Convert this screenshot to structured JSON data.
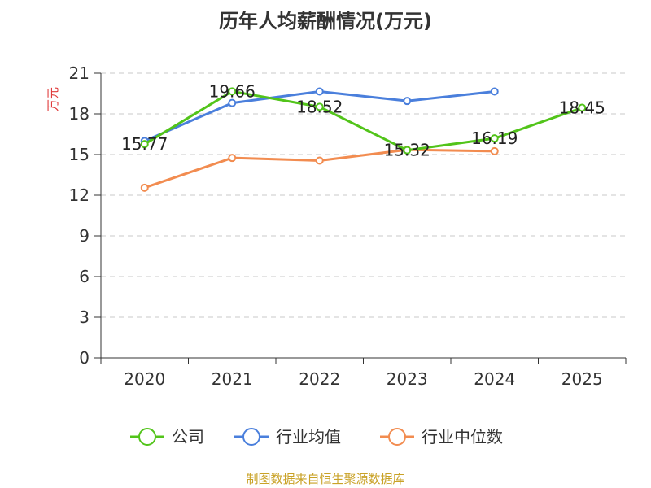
{
  "chart_data": {
    "type": "line",
    "title": "历年人均薪酬情况(万元)",
    "ylabel": "万元",
    "xlabel": "",
    "categories": [
      "2020",
      "2021",
      "2022",
      "2023",
      "2024",
      "2025"
    ],
    "ylim": [
      0,
      21
    ],
    "yticks": [
      0,
      3,
      6,
      9,
      12,
      15,
      18,
      21
    ],
    "grid": true,
    "legend_position": "bottom",
    "series": [
      {
        "name": "公司",
        "color": "#52c41a",
        "values": [
          15.77,
          19.66,
          18.52,
          15.32,
          16.19,
          18.45
        ],
        "labels": [
          "15.77",
          "19.66",
          "18.52",
          "15.32",
          "16.19",
          "18.45"
        ]
      },
      {
        "name": "行业均值",
        "color": "#4a7fdc",
        "values": [
          16.0,
          18.8,
          19.65,
          18.95,
          19.65,
          null
        ]
      },
      {
        "name": "行业中位数",
        "color": "#f28c50",
        "values": [
          12.55,
          14.75,
          14.55,
          15.35,
          15.25,
          null
        ]
      }
    ]
  },
  "source": "制图数据来自恒生聚源数据库"
}
